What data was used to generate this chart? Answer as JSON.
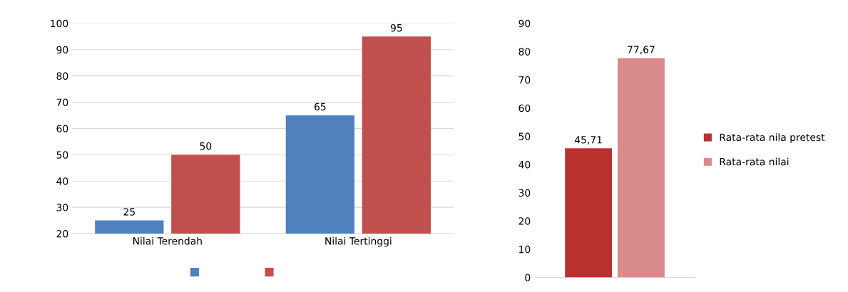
{
  "chart_data": [
    {
      "type": "bar",
      "categories": [
        "Nilai Terendah",
        "Nilai Tertinggi"
      ],
      "series": [
        {
          "color": "#4f81bd",
          "values": [
            25,
            65
          ],
          "value_labels": [
            "25",
            "65"
          ]
        },
        {
          "color": "#c0504d",
          "values": [
            50,
            95
          ],
          "value_labels": [
            "50",
            "95"
          ]
        }
      ],
      "ylim": [
        20,
        100
      ],
      "yticks": [
        20,
        30,
        40,
        50,
        60,
        70,
        80,
        90,
        100
      ],
      "grid": "y"
    },
    {
      "type": "bar",
      "categories": [
        null
      ],
      "series": [
        {
          "name": "Rata-rata nila pretest",
          "color": "#b8312f",
          "values": [
            45.71
          ],
          "value_labels": [
            "45,71"
          ]
        },
        {
          "name": "Rata-rata nilai",
          "color": "#d98a8a",
          "values": [
            77.67
          ],
          "value_labels": [
            "77,67"
          ]
        }
      ],
      "ylim": [
        0,
        90
      ],
      "yticks": [
        0,
        10,
        20,
        30,
        40,
        50,
        60,
        70,
        80,
        90
      ],
      "legend": "right"
    }
  ]
}
